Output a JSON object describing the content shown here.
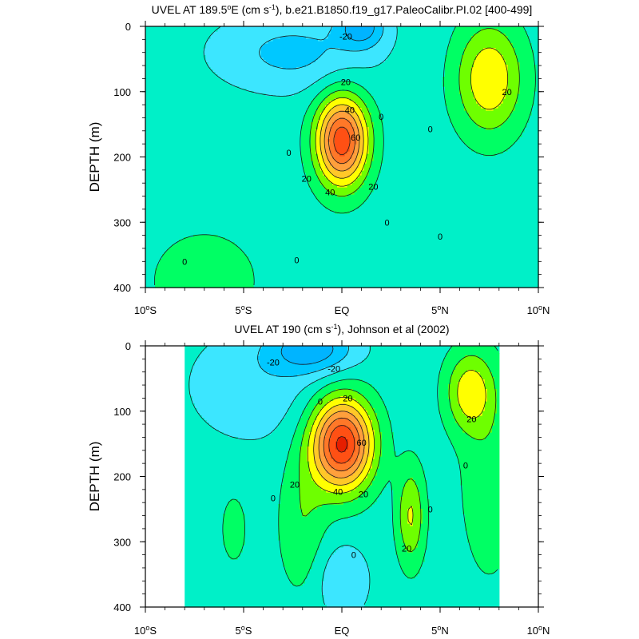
{
  "chart_data": [
    {
      "type": "contour",
      "title": "UVEL AT 189.5°E (cm s⁻¹), b.e21.B1850.f19_g17.PaleoCalibr.PI.02 [400-499]",
      "title_parts": {
        "pre": "UVEL AT 189.5",
        "deg": "o",
        "mid": "E (cm s",
        "sup": "-1",
        "post": "), b.e21.B1850.f19_g17.PaleoCalibr.PI.02 [400-499]"
      },
      "xlabel": "",
      "ylabel": "DEPTH (m)",
      "xlim": [
        -10,
        10
      ],
      "ylim": [
        400,
        0
      ],
      "x_ticks": [
        {
          "v": -10,
          "num": "10",
          "deg": "o",
          "hemi": "S"
        },
        {
          "v": -5,
          "num": "5",
          "deg": "o",
          "hemi": "S"
        },
        {
          "v": 0,
          "num": "EQ",
          "deg": "",
          "hemi": ""
        },
        {
          "v": 5,
          "num": "5",
          "deg": "o",
          "hemi": "N"
        },
        {
          "v": 10,
          "num": "10",
          "deg": "o",
          "hemi": "N"
        }
      ],
      "y_ticks": [
        0,
        100,
        200,
        300,
        400
      ],
      "data_x_range": [
        -10,
        10
      ],
      "features": [
        {
          "kind": "max",
          "x": 0,
          "y": 175,
          "amp": 72,
          "sx": 1.3,
          "sy": 68
        },
        {
          "kind": "min",
          "x": 1.0,
          "y": 0,
          "amp": -28,
          "sx": 1.2,
          "sy": 32
        },
        {
          "kind": "min",
          "x": -2.5,
          "y": 40,
          "amp": -18,
          "sx": 4.0,
          "sy": 60
        },
        {
          "kind": "max",
          "x": 7.5,
          "y": 80,
          "amp": 34,
          "sx": 1.7,
          "sy": 85
        },
        {
          "kind": "max",
          "x": -7.0,
          "y": 390,
          "amp": 14,
          "sx": 2.5,
          "sy": 70
        }
      ],
      "background": -5,
      "contour_labels": [
        {
          "text": "-20",
          "x": 0.2,
          "y": 15
        },
        {
          "text": "20",
          "x": 0.2,
          "y": 85
        },
        {
          "text": "40",
          "x": 0.4,
          "y": 128
        },
        {
          "text": "60",
          "x": 0.7,
          "y": 170
        },
        {
          "text": "0",
          "x": 2.0,
          "y": 138
        },
        {
          "text": "0",
          "x": 4.5,
          "y": 157
        },
        {
          "text": "20",
          "x": 8.4,
          "y": 100
        },
        {
          "text": "0",
          "x": -2.7,
          "y": 193
        },
        {
          "text": "20",
          "x": -1.8,
          "y": 233
        },
        {
          "text": "40",
          "x": -0.6,
          "y": 254
        },
        {
          "text": "20",
          "x": 1.6,
          "y": 245
        },
        {
          "text": "0",
          "x": 2.3,
          "y": 300
        },
        {
          "text": "0",
          "x": 5.0,
          "y": 322
        },
        {
          "text": "0",
          "x": -2.3,
          "y": 358
        },
        {
          "text": "0",
          "x": -8.0,
          "y": 360
        }
      ]
    },
    {
      "type": "contour",
      "title": "UVEL AT 190 (cm s⁻¹), Johnson et al (2002)",
      "title_parts": {
        "pre": "UVEL AT 190 (cm s",
        "deg": "",
        "mid": "",
        "sup": "-1",
        "post": "), Johnson et al (2002)"
      },
      "xlabel": "",
      "ylabel": "DEPTH (m)",
      "xlim": [
        -10,
        10
      ],
      "ylim": [
        400,
        0
      ],
      "x_ticks": [
        {
          "v": -10,
          "num": "10",
          "deg": "o",
          "hemi": "S"
        },
        {
          "v": -5,
          "num": "5",
          "deg": "o",
          "hemi": "S"
        },
        {
          "v": 0,
          "num": "EQ",
          "deg": "",
          "hemi": ""
        },
        {
          "v": 5,
          "num": "5",
          "deg": "o",
          "hemi": "N"
        },
        {
          "v": 10,
          "num": "10",
          "deg": "o",
          "hemi": "N"
        }
      ],
      "y_ticks": [
        0,
        100,
        200,
        300,
        400
      ],
      "data_x_range": [
        -8,
        8
      ],
      "features": [
        {
          "kind": "max",
          "x": 0,
          "y": 150,
          "amp": 78,
          "sx": 1.55,
          "sy": 70
        },
        {
          "kind": "min",
          "x": -1.5,
          "y": 5,
          "amp": -30,
          "sx": 2.2,
          "sy": 38
        },
        {
          "kind": "min",
          "x": -4.5,
          "y": 60,
          "amp": -12,
          "sx": 3.5,
          "sy": 90
        },
        {
          "kind": "max",
          "x": 3.5,
          "y": 260,
          "amp": 26,
          "sx": 0.7,
          "sy": 75
        },
        {
          "kind": "max",
          "x": 6.5,
          "y": 70,
          "amp": 30,
          "sx": 1.2,
          "sy": 60
        },
        {
          "kind": "max",
          "x": 7.5,
          "y": 200,
          "amp": 12,
          "sx": 1.5,
          "sy": 160
        },
        {
          "kind": "max",
          "x": -5.5,
          "y": 280,
          "amp": 12,
          "sx": 0.6,
          "sy": 50
        },
        {
          "kind": "max",
          "x": -2.0,
          "y": 270,
          "amp": 14,
          "sx": 1.2,
          "sy": 110
        },
        {
          "kind": "min",
          "x": 0,
          "y": 360,
          "amp": -14,
          "sx": 1.4,
          "sy": 60
        }
      ],
      "background": -5,
      "contour_labels": [
        {
          "text": "-20",
          "x": -3.5,
          "y": 25
        },
        {
          "text": "-20",
          "x": -0.4,
          "y": 35
        },
        {
          "text": "0",
          "x": -1.1,
          "y": 85
        },
        {
          "text": "20",
          "x": 0.3,
          "y": 80
        },
        {
          "text": "60",
          "x": 1.0,
          "y": 148
        },
        {
          "text": "20",
          "x": 6.6,
          "y": 112
        },
        {
          "text": "0",
          "x": 6.3,
          "y": 183
        },
        {
          "text": "20",
          "x": -2.4,
          "y": 212
        },
        {
          "text": "40",
          "x": -0.2,
          "y": 223
        },
        {
          "text": "20",
          "x": 1.1,
          "y": 227
        },
        {
          "text": "0",
          "x": -3.5,
          "y": 233
        },
        {
          "text": "0",
          "x": 4.5,
          "y": 250
        },
        {
          "text": "0",
          "x": 0.6,
          "y": 320
        },
        {
          "text": "20",
          "x": 3.3,
          "y": 310
        }
      ]
    }
  ],
  "colors": {
    "levels": [
      -30,
      -20,
      -10,
      0,
      10,
      20,
      30,
      40,
      50,
      60,
      70
    ],
    "fills": [
      "#00b4ff",
      "#00c8ff",
      "#3ce6ff",
      "#00f0c8",
      "#00ff64",
      "#6eff00",
      "#ffff00",
      "#ffc828",
      "#ffa03c",
      "#ff7828",
      "#ff5014",
      "#e61e00"
    ],
    "line": "#1a1a1a"
  }
}
